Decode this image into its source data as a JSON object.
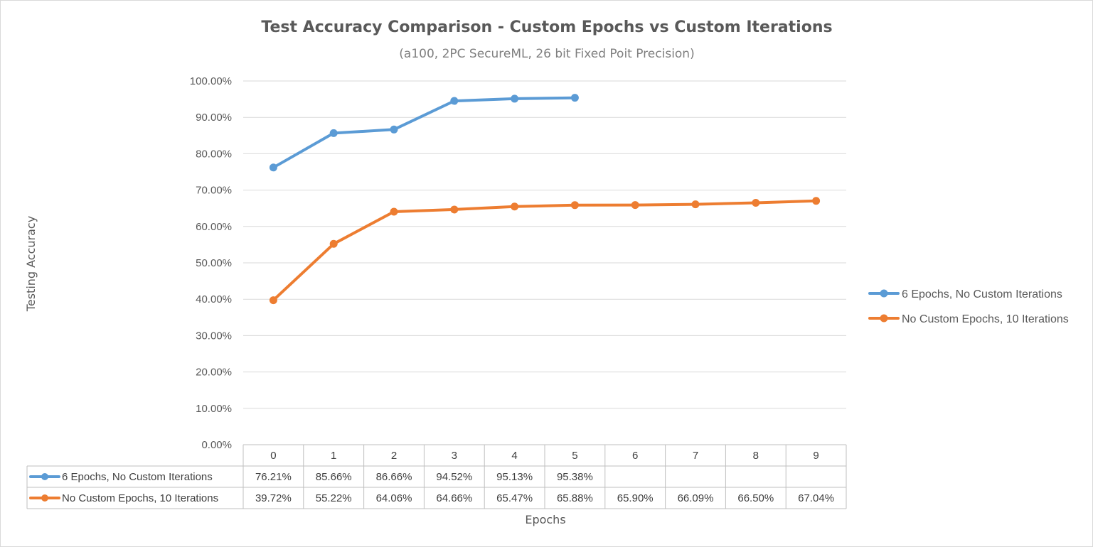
{
  "chart_data": {
    "type": "line",
    "title": "Test Accuracy Comparison - Custom Epochs vs Custom Iterations",
    "subtitle": "(a100, 2PC SecureML, 26 bit Fixed Poit Precision)",
    "xlabel": "Epochs",
    "ylabel": "Testing Accuracy",
    "categories": [
      "0",
      "1",
      "2",
      "3",
      "4",
      "5",
      "6",
      "7",
      "8",
      "9"
    ],
    "ylim": [
      0,
      100
    ],
    "yticks": [
      "0.00%",
      "10.00%",
      "20.00%",
      "30.00%",
      "40.00%",
      "50.00%",
      "60.00%",
      "70.00%",
      "80.00%",
      "90.00%",
      "100.00%"
    ],
    "grid": true,
    "legend_position": "right",
    "data_table": true,
    "series": [
      {
        "name": "6 Epochs, No Custom Iterations",
        "color": "#5b9bd5",
        "values": [
          76.21,
          85.66,
          86.66,
          94.52,
          95.13,
          95.38,
          null,
          null,
          null,
          null
        ],
        "labels": [
          "76.21%",
          "85.66%",
          "86.66%",
          "94.52%",
          "95.13%",
          "95.38%",
          "",
          "",
          "",
          ""
        ]
      },
      {
        "name": "No Custom Epochs, 10 Iterations",
        "color": "#ed7d31",
        "values": [
          39.72,
          55.22,
          64.06,
          64.66,
          65.47,
          65.88,
          65.9,
          66.09,
          66.5,
          67.04
        ],
        "labels": [
          "39.72%",
          "55.22%",
          "64.06%",
          "64.66%",
          "65.47%",
          "65.88%",
          "65.90%",
          "66.09%",
          "66.50%",
          "67.04%"
        ]
      }
    ]
  }
}
